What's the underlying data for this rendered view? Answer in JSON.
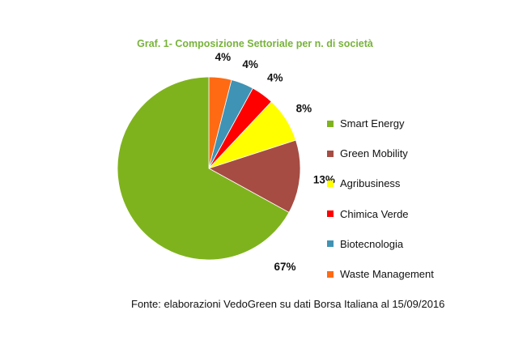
{
  "chart_data": {
    "type": "pie",
    "title": "Graf. 1- Composizione Settoriale per n. di società",
    "categories": [
      "Smart Energy",
      "Green Mobility",
      "Agribusiness",
      "Chimica Verde",
      "Biotecnologia",
      "Waste Management"
    ],
    "values": [
      67,
      13,
      8,
      4,
      4,
      4
    ],
    "labels": [
      "67%",
      "13%",
      "8%",
      "4%",
      "4%",
      "4%"
    ],
    "colors": [
      "#7fb31e",
      "#a64c43",
      "#ffff00",
      "#ff0000",
      "#3f93b5",
      "#ff6a13"
    ],
    "legend_position": "right"
  },
  "source_note": "Fonte: elaborazioni VedoGreen su dati Borsa Italiana al 15/09/2016"
}
